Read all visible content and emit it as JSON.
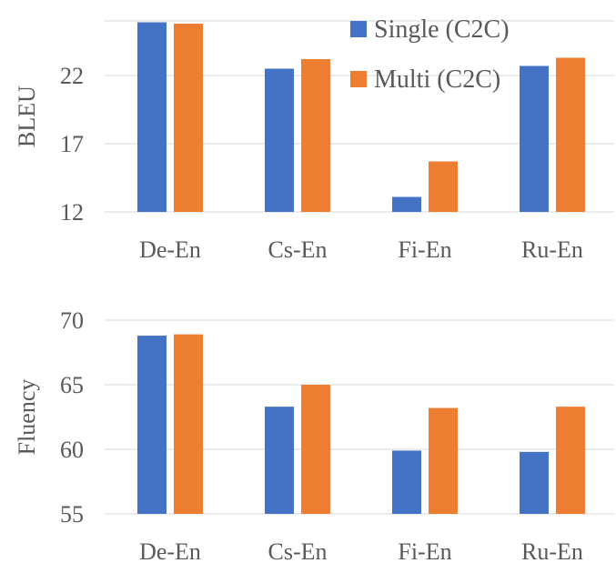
{
  "chart_data": [
    {
      "type": "bar",
      "categories": [
        "De-En",
        "Cs-En",
        "Fi-En",
        "Ru-En"
      ],
      "series": [
        {
          "name": "Single (C2C)",
          "values": [
            25.9,
            22.5,
            13.1,
            22.7
          ]
        },
        {
          "name": "Multi (C2C)",
          "values": [
            25.8,
            23.2,
            15.7,
            23.3
          ]
        }
      ],
      "ylabel": "BLEU",
      "ylim": [
        12,
        26
      ],
      "yticks": [
        12,
        17,
        22
      ],
      "grid": true,
      "legend": "top-right"
    },
    {
      "type": "bar",
      "categories": [
        "De-En",
        "Cs-En",
        "Fi-En",
        "Ru-En"
      ],
      "series": [
        {
          "name": "",
          "values": [
            68.8,
            63.3,
            59.9,
            59.8
          ]
        },
        {
          "name": "",
          "values": [
            68.9,
            65.0,
            63.2,
            63.3
          ]
        }
      ],
      "ylabel": "Fluency",
      "ylim": [
        55,
        70
      ],
      "yticks": [
        55,
        60,
        65,
        70
      ],
      "grid": true
    }
  ],
  "colors": {
    "single": "#4472c4",
    "multi": "#ed7d31"
  }
}
